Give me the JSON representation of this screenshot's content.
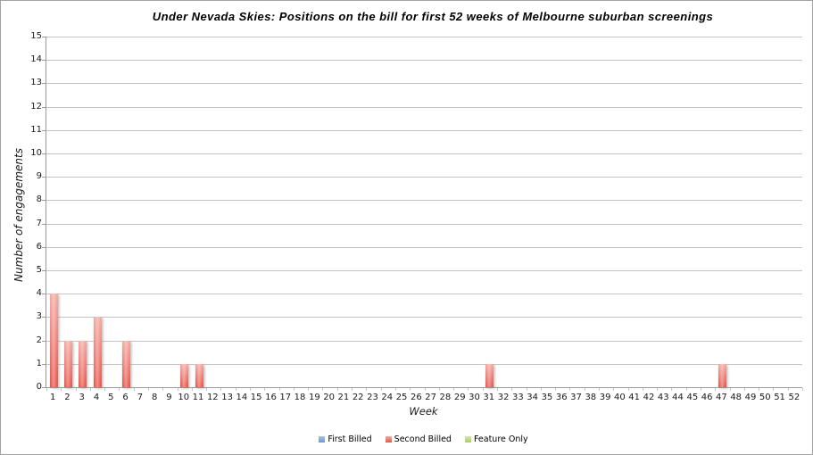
{
  "chart_data": {
    "type": "bar",
    "title": "Under Nevada Skies: Positions on the bill for first 52 weeks of Melbourne suburban screenings",
    "xlabel": "Week",
    "ylabel": "Number of engagements",
    "ylim": [
      0,
      15
    ],
    "ytick_step": 1,
    "grid": true,
    "legend_position": "bottom",
    "categories": [
      1,
      2,
      3,
      4,
      5,
      6,
      7,
      8,
      9,
      10,
      11,
      12,
      13,
      14,
      15,
      16,
      17,
      18,
      19,
      20,
      21,
      22,
      23,
      24,
      25,
      26,
      27,
      28,
      29,
      30,
      31,
      32,
      33,
      34,
      35,
      36,
      37,
      38,
      39,
      40,
      41,
      42,
      43,
      44,
      45,
      46,
      47,
      48,
      49,
      50,
      51,
      52
    ],
    "series": [
      {
        "name": "First Billed",
        "color": "#6f97d4",
        "color_light": "#a9c0e8",
        "values": [
          0,
          0,
          0,
          0,
          0,
          0,
          0,
          0,
          0,
          0,
          0,
          0,
          0,
          0,
          0,
          0,
          0,
          0,
          0,
          0,
          0,
          0,
          0,
          0,
          0,
          0,
          0,
          0,
          0,
          0,
          0,
          0,
          0,
          0,
          0,
          0,
          0,
          0,
          0,
          0,
          0,
          0,
          0,
          0,
          0,
          0,
          0,
          0,
          0,
          0,
          0,
          0
        ]
      },
      {
        "name": "Second Billed",
        "color": "#e7544b",
        "color_light": "#f4a9a2",
        "values": [
          4,
          2,
          2,
          3,
          0,
          2,
          0,
          0,
          0,
          1,
          1,
          0,
          0,
          0,
          0,
          0,
          0,
          0,
          0,
          0,
          0,
          0,
          0,
          0,
          0,
          0,
          0,
          0,
          0,
          0,
          1,
          0,
          0,
          0,
          0,
          0,
          0,
          0,
          0,
          0,
          0,
          0,
          0,
          0,
          0,
          0,
          1,
          0,
          0,
          0,
          0,
          0
        ]
      },
      {
        "name": "Feature Only",
        "color": "#a8d164",
        "color_light": "#cfe8a5",
        "values": [
          0,
          0,
          0,
          0,
          0,
          0,
          0,
          0,
          0,
          0,
          0,
          0,
          0,
          0,
          0,
          0,
          0,
          0,
          0,
          0,
          0,
          0,
          0,
          0,
          0,
          0,
          0,
          0,
          0,
          0,
          0,
          0,
          0,
          0,
          0,
          0,
          0,
          0,
          0,
          0,
          0,
          0,
          0,
          0,
          0,
          0,
          0,
          0,
          0,
          0,
          0,
          0
        ]
      }
    ]
  }
}
